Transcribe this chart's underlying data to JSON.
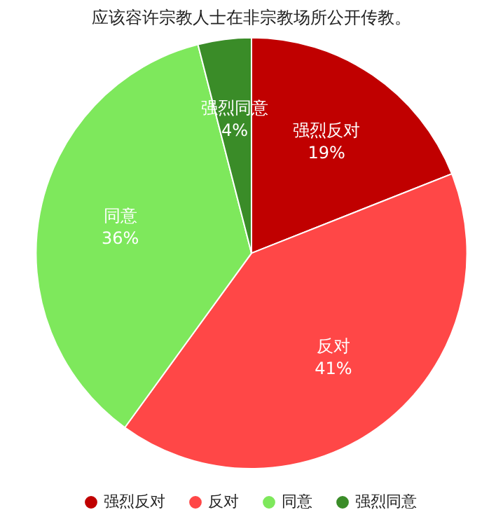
{
  "chart_data": {
    "type": "pie",
    "title": "应该容许宗教人士在非宗教场所公开传教。",
    "categories": [
      "强烈反对",
      "反对",
      "同意",
      "强烈同意"
    ],
    "values": [
      19,
      41,
      36,
      4
    ],
    "value_labels": [
      "19%",
      "41%",
      "36%",
      "4%"
    ],
    "colors": [
      "#c00000",
      "#ff4747",
      "#7ee85c",
      "#3a8c28"
    ],
    "legend": "bottom"
  }
}
